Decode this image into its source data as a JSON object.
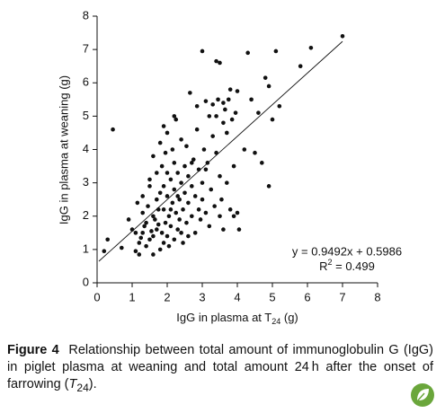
{
  "chart_data": {
    "type": "scatter",
    "y_label": "IgG in plasma at weaning (g)",
    "x_label": {
      "main": "IgG in plasma at T",
      "sub": "24",
      "unit": " (g)"
    },
    "xlim": [
      0,
      8
    ],
    "xticks": [
      0,
      1,
      2,
      3,
      4,
      5,
      6,
      7,
      8
    ],
    "ylim": [
      0,
      8
    ],
    "yticks": [
      0,
      1,
      2,
      3,
      4,
      5,
      6,
      7,
      8
    ],
    "color": "#111111",
    "grid": false,
    "x": [
      0.2,
      0.3,
      0.45,
      0.7,
      0.9,
      1.0,
      1.1,
      1.1,
      1.15,
      1.2,
      1.2,
      1.25,
      1.3,
      1.3,
      1.35,
      1.4,
      1.4,
      1.45,
      1.5,
      1.5,
      1.5,
      1.55,
      1.6,
      1.6,
      1.6,
      1.65,
      1.7,
      1.7,
      1.7,
      1.75,
      1.8,
      1.8,
      1.8,
      1.85,
      1.85,
      1.9,
      1.9,
      1.9,
      1.95,
      1.95,
      2.0,
      2.0,
      2.0,
      2.05,
      2.05,
      2.1,
      2.1,
      2.15,
      2.15,
      2.2,
      2.2,
      2.2,
      2.25,
      2.25,
      2.3,
      2.3,
      2.35,
      2.35,
      2.4,
      2.4,
      2.45,
      2.45,
      2.5,
      2.5,
      2.55,
      2.55,
      2.6,
      2.6,
      2.65,
      2.7,
      2.7,
      2.75,
      2.8,
      2.8,
      2.85,
      2.9,
      2.9,
      2.95,
      3.0,
      3.0,
      3.0,
      3.05,
      3.1,
      3.1,
      3.15,
      3.2,
      3.2,
      3.25,
      3.3,
      3.3,
      3.35,
      3.4,
      3.4,
      3.45,
      3.5,
      3.5,
      3.55,
      3.6,
      3.6,
      3.65,
      3.7,
      3.7,
      3.75,
      3.8,
      3.8,
      3.85,
      3.9,
      3.9,
      3.95,
      4.0,
      4.0,
      4.05,
      4.2,
      4.3,
      4.4,
      4.5,
      4.6,
      4.7,
      4.8,
      4.9,
      4.9,
      5.0,
      5.1,
      5.2,
      5.8,
      6.1,
      7.0,
      1.3,
      1.6,
      1.75,
      2.0,
      2.1,
      2.3,
      2.4,
      2.6,
      2.7,
      3.1,
      3.5,
      3.4,
      3.6,
      2.85,
      1.9,
      2.2
    ],
    "values": [
      0.95,
      1.3,
      4.6,
      1.05,
      1.9,
      1.6,
      0.95,
      1.5,
      2.4,
      1.2,
      0.85,
      1.35,
      2.1,
      2.6,
      1.7,
      1.1,
      1.8,
      2.3,
      1.3,
      2.9,
      3.1,
      1.55,
      0.85,
      2.0,
      3.8,
      1.9,
      1.6,
      2.5,
      3.3,
      1.75,
      1.0,
      2.7,
      4.2,
      1.5,
      3.5,
      1.2,
      2.2,
      2.9,
      1.8,
      3.9,
      1.4,
      2.6,
      4.5,
      1.1,
      2.0,
      3.1,
      1.7,
      2.4,
      4.0,
      1.3,
      2.8,
      3.6,
      2.1,
      4.9,
      1.6,
      3.3,
      2.5,
      1.9,
      3.0,
      4.3,
      1.2,
      2.2,
      2.7,
      3.5,
      1.8,
      4.1,
      2.4,
      3.2,
      5.7,
      2.0,
      2.9,
      3.7,
      1.5,
      2.6,
      4.6,
      2.2,
      3.4,
      1.9,
      6.95,
      3.0,
      2.5,
      4.0,
      5.45,
      2.1,
      3.6,
      5.0,
      1.7,
      2.8,
      4.4,
      5.35,
      2.3,
      3.9,
      6.65,
      5.5,
      6.6,
      3.2,
      2.5,
      4.8,
      1.6,
      5.2,
      3.0,
      4.5,
      5.5,
      2.2,
      5.8,
      4.9,
      3.5,
      2.0,
      5.1,
      5.75,
      2.1,
      1.6,
      4.0,
      6.9,
      5.5,
      3.9,
      5.1,
      3.6,
      6.15,
      2.9,
      5.9,
      4.9,
      6.95,
      5.3,
      6.5,
      7.05,
      7.4,
      1.5,
      1.4,
      2.2,
      3.3,
      2.2,
      2.6,
      1.5,
      1.4,
      3.6,
      3.4,
      2.0,
      5.0,
      5.4,
      5.3,
      4.7,
      5.0
    ],
    "fit": {
      "slope": 0.9492,
      "intercept": 0.5986,
      "x_range": [
        0.05,
        7
      ]
    },
    "equation": "y = 0.9492x + 0.5986",
    "r2": {
      "main": "R",
      "sup": "2",
      "rest": " = 0.499"
    }
  },
  "caption": {
    "label": "Figure 4",
    "line1": "Relationship between total amount of immunoglobulin G (IgG)",
    "line2": "in piglet plasma at weaning and total amount 24 h after the onset of",
    "line3_start": "farrowing (",
    "line3_italic": "T",
    "line3_sub": "24",
    "line3_end": ")."
  }
}
